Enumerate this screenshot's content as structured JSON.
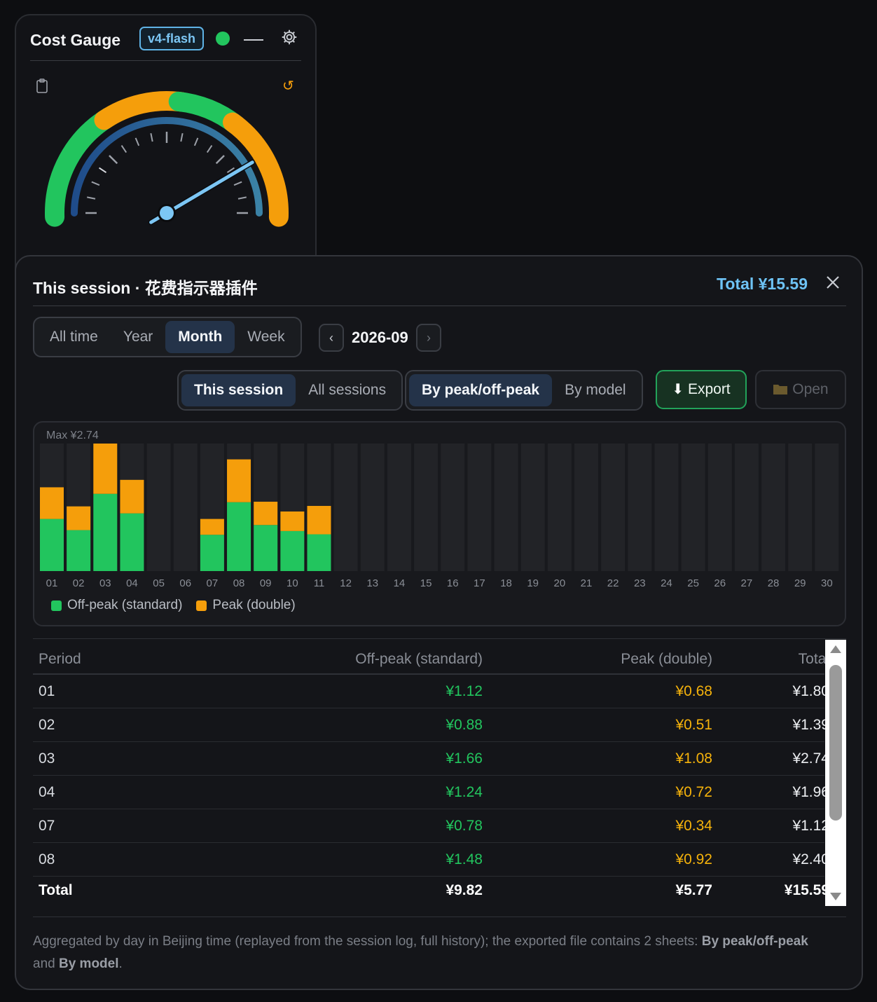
{
  "widget": {
    "title": "Cost Gauge",
    "model_badge": "v4-flash",
    "status_color": "#22c55e",
    "gauge_level": 0.83
  },
  "modal": {
    "title": "This session · 花费指示器插件",
    "total": "Total ¥15.59",
    "period_tabs": [
      "All time",
      "Year",
      "Month",
      "Week"
    ],
    "active_period": "Month",
    "current_period": "2026-09",
    "prev_symbol": "‹",
    "next_symbol": "›",
    "scope_tabs": [
      "This session",
      "All sessions"
    ],
    "active_scope": "This session",
    "group_tabs": [
      "By peak/off-peak",
      "By model"
    ],
    "active_group": "By peak/off-peak",
    "export_label": "Export",
    "open_label": "Open",
    "footnote": {
      "text1": "Aggregated by day in Beijing time (replayed from the session log, full history); the exported file contains 2 sheets: ",
      "bold1": "By peak/off-peak",
      "text2": " and ",
      "bold2": "By model",
      "text3": "."
    }
  },
  "chart_data": {
    "type": "bar",
    "stacked": true,
    "max_label": "Max ¥2.74",
    "ymax": 2.74,
    "categories": [
      "01",
      "02",
      "03",
      "04",
      "05",
      "06",
      "07",
      "08",
      "09",
      "10",
      "11",
      "12",
      "13",
      "14",
      "15",
      "16",
      "17",
      "18",
      "19",
      "20",
      "21",
      "22",
      "23",
      "24",
      "25",
      "26",
      "27",
      "28",
      "29",
      "30"
    ],
    "series": [
      {
        "name": "Off-peak (standard)",
        "color": "#22c55e",
        "values": [
          1.12,
          0.88,
          1.66,
          1.24,
          0,
          0,
          0.78,
          1.48,
          0.99,
          0.86,
          0.79,
          0,
          0,
          0,
          0,
          0,
          0,
          0,
          0,
          0,
          0,
          0,
          0,
          0,
          0,
          0,
          0,
          0,
          0,
          0
        ]
      },
      {
        "name": "Peak (double)",
        "color": "#f59e0b",
        "values": [
          0.68,
          0.51,
          1.08,
          0.72,
          0,
          0,
          0.34,
          0.92,
          0.5,
          0.42,
          0.61,
          0,
          0,
          0,
          0,
          0,
          0,
          0,
          0,
          0,
          0,
          0,
          0,
          0,
          0,
          0,
          0,
          0,
          0,
          0
        ]
      }
    ],
    "legend_position": "bottom-left"
  },
  "table": {
    "headers": [
      "Period",
      "Off-peak (standard)",
      "Peak (double)",
      "Total"
    ],
    "rows": [
      {
        "period": "01",
        "off": "¥1.12",
        "peak": "¥0.68",
        "total": "¥1.80"
      },
      {
        "period": "02",
        "off": "¥0.88",
        "peak": "¥0.51",
        "total": "¥1.39"
      },
      {
        "period": "03",
        "off": "¥1.66",
        "peak": "¥1.08",
        "total": "¥2.74"
      },
      {
        "period": "04",
        "off": "¥1.24",
        "peak": "¥0.72",
        "total": "¥1.96"
      },
      {
        "period": "07",
        "off": "¥0.78",
        "peak": "¥0.34",
        "total": "¥1.12"
      },
      {
        "period": "08",
        "off": "¥1.48",
        "peak": "¥0.92",
        "total": "¥2.40"
      }
    ],
    "footer": {
      "label": "Total",
      "off": "¥9.82",
      "peak": "¥5.77",
      "total": "¥15.59"
    }
  }
}
